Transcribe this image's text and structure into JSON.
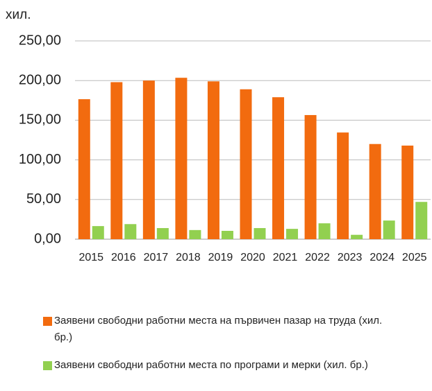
{
  "chart_data": {
    "type": "bar",
    "y_unit": "хил.",
    "categories": [
      "2015",
      "2016",
      "2017",
      "2018",
      "2019",
      "2020",
      "2021",
      "2022",
      "2023",
      "2024",
      "2025"
    ],
    "series": [
      {
        "name": "Заявени свободни работни места на първичен пазар на труда  (хил. бр.)",
        "color": "#f26b0f",
        "values": [
          176.5,
          198,
          200,
          203.5,
          199,
          189,
          179,
          156.5,
          134.5,
          120,
          118
        ]
      },
      {
        "name": "Заявени свободни работни места по програми и мерки (хил. бр.)",
        "color": "#92d050",
        "values": [
          16.5,
          19,
          14,
          11.5,
          10.5,
          14,
          13,
          20,
          5.5,
          23.5,
          47
        ]
      }
    ],
    "ylim": [
      0,
      250
    ],
    "yticks": [
      {
        "value": 0,
        "label": "0,00"
      },
      {
        "value": 50,
        "label": "50,00"
      },
      {
        "value": 100,
        "label": "100,00"
      },
      {
        "value": 150,
        "label": "150,00"
      },
      {
        "value": 200,
        "label": "200,00"
      },
      {
        "value": 250,
        "label": "250,00"
      }
    ],
    "grid": true,
    "legend": "bottom"
  }
}
